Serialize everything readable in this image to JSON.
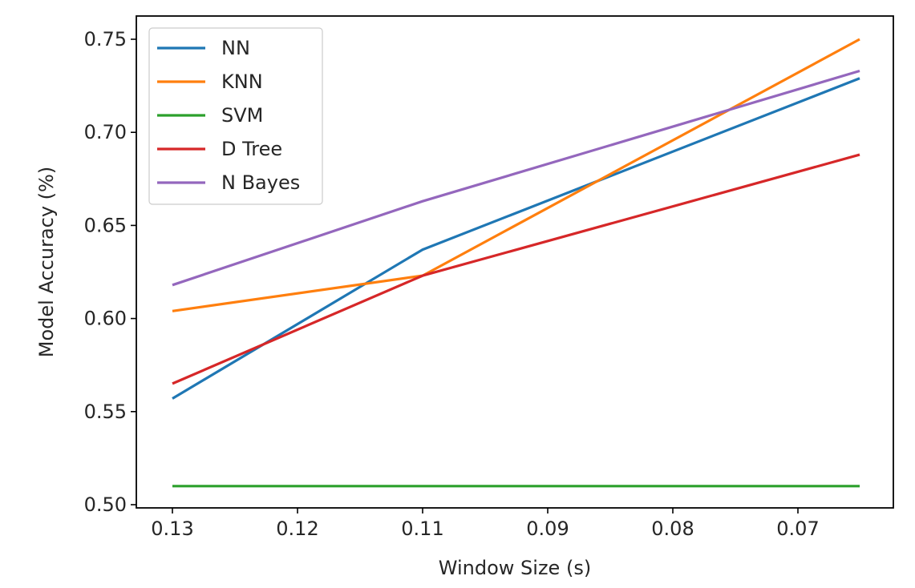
{
  "chart_data": {
    "type": "line",
    "title": "",
    "xlabel": "Window Size (s)",
    "ylabel": "Model Accuracy (%)",
    "x_categories": [
      "0.13",
      "0.11",
      "0.07"
    ],
    "x_ticks": [
      "0.13",
      "0.12",
      "0.11",
      "0.09",
      "0.08",
      "0.07"
    ],
    "y_ticks": [
      "0.50",
      "0.55",
      "0.60",
      "0.65",
      "0.70",
      "0.75"
    ],
    "ylim": [
      0.5,
      0.75
    ],
    "grid": false,
    "legend_position": "top-left",
    "series": [
      {
        "name": "NN",
        "color": "#1f77b4",
        "values": [
          0.557,
          0.637,
          0.729
        ]
      },
      {
        "name": "KNN",
        "color": "#ff7f0e",
        "values": [
          0.604,
          0.623,
          0.75
        ]
      },
      {
        "name": "SVM",
        "color": "#2ca02c",
        "values": [
          0.51,
          0.51,
          0.51
        ]
      },
      {
        "name": "D Tree",
        "color": "#d62728",
        "values": [
          0.565,
          0.623,
          0.688
        ]
      },
      {
        "name": "N Bayes",
        "color": "#9467bd",
        "values": [
          0.618,
          0.663,
          0.733
        ]
      }
    ]
  }
}
